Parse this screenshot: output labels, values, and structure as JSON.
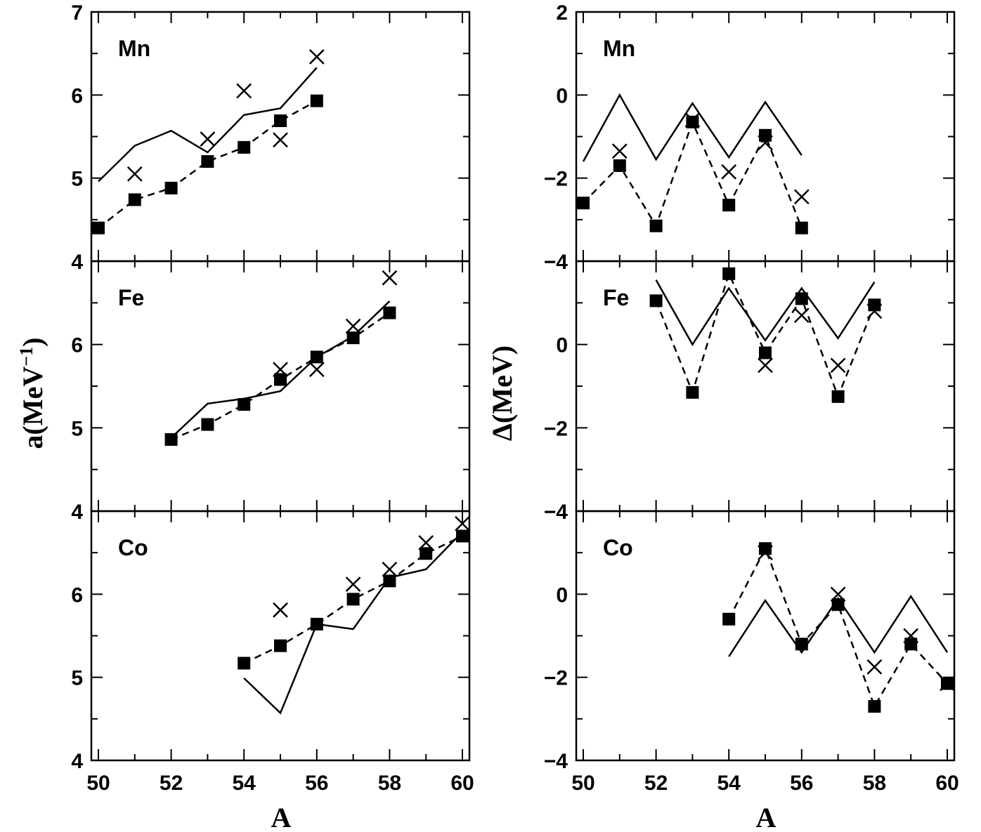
{
  "figure": {
    "left_ylabel": "a(MeV",
    "left_ylabel_sup": "−1",
    "left_ylabel_close": ")",
    "right_ylabel": "Δ(MeV)",
    "xlabel": "A"
  },
  "chart_data": [
    {
      "type": "line",
      "panel": "Mn",
      "column": "left",
      "row": 0,
      "xlim": [
        50,
        60
      ],
      "ylim": [
        4,
        7
      ],
      "yticks": [
        4,
        5,
        6,
        7
      ],
      "xticks": [
        50,
        52,
        54,
        56,
        58,
        60
      ],
      "series": [
        {
          "style": "solid-line",
          "x": [
            50,
            51,
            52,
            53,
            54,
            55,
            56
          ],
          "y": [
            4.96,
            5.39,
            5.57,
            5.31,
            5.76,
            5.84,
            6.33
          ]
        },
        {
          "style": "dashed-squares",
          "x": [
            50,
            51,
            52,
            53,
            54,
            55,
            56
          ],
          "y": [
            4.4,
            4.74,
            4.88,
            5.2,
            5.37,
            5.69,
            5.93
          ]
        },
        {
          "style": "crosses",
          "x": [
            51,
            53,
            54,
            55,
            56
          ],
          "y": [
            5.05,
            5.47,
            6.05,
            5.46,
            6.46
          ]
        }
      ]
    },
    {
      "type": "line",
      "panel": "Fe",
      "column": "left",
      "row": 1,
      "xlim": [
        50,
        60
      ],
      "ylim": [
        4,
        7
      ],
      "yticks": [
        4,
        5,
        6
      ],
      "xticks": [
        50,
        52,
        54,
        56,
        58,
        60
      ],
      "series": [
        {
          "style": "solid-line",
          "x": [
            52,
            53,
            54,
            55,
            56,
            57,
            58
          ],
          "y": [
            4.88,
            5.29,
            5.35,
            5.44,
            5.85,
            6.1,
            6.52
          ]
        },
        {
          "style": "dashed-squares",
          "x": [
            52,
            53,
            54,
            55,
            56,
            57,
            58
          ],
          "y": [
            4.86,
            5.04,
            5.28,
            5.58,
            5.85,
            6.08,
            6.38
          ]
        },
        {
          "style": "crosses",
          "x": [
            55,
            56,
            57,
            58
          ],
          "y": [
            5.7,
            5.7,
            6.22,
            6.8
          ]
        }
      ]
    },
    {
      "type": "line",
      "panel": "Co",
      "column": "left",
      "row": 2,
      "xlim": [
        50,
        60
      ],
      "ylim": [
        4,
        7
      ],
      "yticks": [
        4,
        5,
        6
      ],
      "xticks": [
        50,
        52,
        54,
        56,
        58,
        60
      ],
      "series": [
        {
          "style": "solid-line",
          "x": [
            54,
            55,
            56,
            57,
            58,
            59,
            60
          ],
          "y": [
            4.99,
            4.57,
            5.64,
            5.58,
            6.2,
            6.3,
            6.75
          ]
        },
        {
          "style": "dashed-squares",
          "x": [
            54,
            55,
            56,
            57,
            58,
            59,
            60
          ],
          "y": [
            5.17,
            5.38,
            5.64,
            5.94,
            6.16,
            6.49,
            6.7
          ]
        },
        {
          "style": "crosses",
          "x": [
            55,
            57,
            58,
            59,
            60
          ],
          "y": [
            5.81,
            6.12,
            6.3,
            6.62,
            6.85
          ]
        }
      ]
    },
    {
      "type": "line",
      "panel": "Mn",
      "column": "right",
      "row": 0,
      "xlim": [
        50,
        60
      ],
      "ylim": [
        -4,
        2
      ],
      "yticks": [
        -4,
        -2,
        0,
        2
      ],
      "xticks": [
        50,
        52,
        54,
        56,
        58,
        60
      ],
      "series": [
        {
          "style": "solid-line",
          "x": [
            50,
            51,
            52,
            53,
            54,
            55,
            56
          ],
          "y": [
            -1.6,
            0.0,
            -1.55,
            -0.2,
            -1.5,
            -0.17,
            -1.45
          ]
        },
        {
          "style": "dashed-squares",
          "x": [
            50,
            51,
            52,
            53,
            54,
            55,
            56
          ],
          "y": [
            -2.6,
            -1.7,
            -3.15,
            -0.65,
            -2.65,
            -0.97,
            -3.2
          ]
        },
        {
          "style": "crosses",
          "x": [
            51,
            53,
            54,
            55,
            56
          ],
          "y": [
            -1.35,
            -0.6,
            -1.85,
            -1.15,
            -2.45
          ]
        }
      ]
    },
    {
      "type": "line",
      "panel": "Fe",
      "column": "right",
      "row": 1,
      "xlim": [
        50,
        60
      ],
      "ylim": [
        -4,
        2
      ],
      "yticks": [
        -4,
        -2,
        0
      ],
      "xticks": [
        50,
        52,
        54,
        56,
        58,
        60
      ],
      "series": [
        {
          "style": "solid-line",
          "x": [
            52,
            53,
            54,
            55,
            56,
            57,
            58
          ],
          "y": [
            1.55,
            0.0,
            1.35,
            0.1,
            1.35,
            0.15,
            1.5
          ]
        },
        {
          "style": "dashed-squares",
          "x": [
            52,
            53,
            54,
            55,
            56,
            57,
            58
          ],
          "y": [
            1.05,
            -1.15,
            1.7,
            -0.2,
            1.1,
            -1.25,
            0.95
          ]
        },
        {
          "style": "crosses",
          "x": [
            55,
            56,
            57,
            58
          ],
          "y": [
            -0.5,
            0.7,
            -0.5,
            0.8
          ]
        }
      ]
    },
    {
      "type": "line",
      "panel": "Co",
      "column": "right",
      "row": 2,
      "xlim": [
        50,
        60
      ],
      "ylim": [
        -4,
        2
      ],
      "yticks": [
        -4,
        -2,
        0
      ],
      "xticks": [
        50,
        52,
        54,
        56,
        58,
        60
      ],
      "series": [
        {
          "style": "solid-line",
          "x": [
            54,
            55,
            56,
            57,
            58,
            59,
            60
          ],
          "y": [
            -1.5,
            -0.15,
            -1.4,
            -0.1,
            -1.4,
            -0.05,
            -1.4
          ]
        },
        {
          "style": "dashed-squares",
          "x": [
            54,
            55,
            56,
            57,
            58,
            59,
            60
          ],
          "y": [
            -0.6,
            1.1,
            -1.2,
            -0.25,
            -2.7,
            -1.2,
            -2.15
          ]
        },
        {
          "style": "crosses",
          "x": [
            55,
            57,
            58,
            59,
            60
          ],
          "y": [
            1.0,
            0.0,
            -1.75,
            -1.0,
            -2.15
          ]
        }
      ]
    }
  ]
}
